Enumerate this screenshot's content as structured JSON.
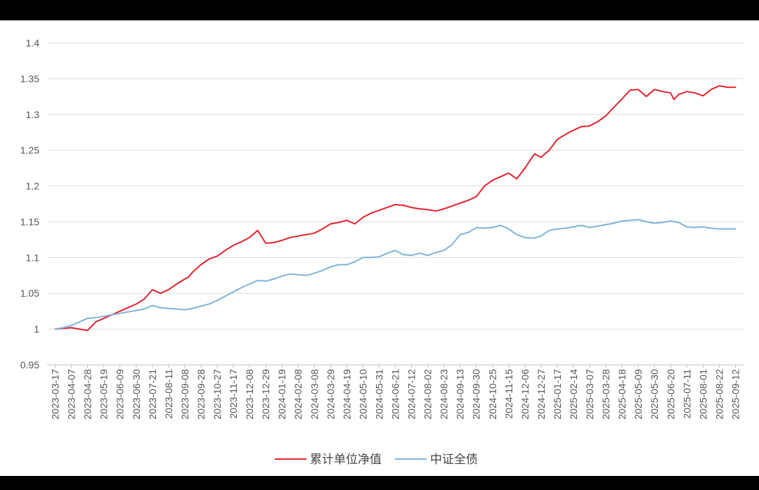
{
  "chart_data": {
    "type": "line",
    "title": "",
    "xlabel": "",
    "ylabel": "",
    "ylim": [
      0.95,
      1.4
    ],
    "yticks": [
      "0.95",
      "1",
      "1.05",
      "1.1",
      "1.15",
      "1.2",
      "1.25",
      "1.3",
      "1.35",
      "1.4"
    ],
    "grid": "horizontal",
    "legend_position": "bottom",
    "x_tick_labels": [
      "2023-03-17",
      "2023-04-07",
      "2023-04-28",
      "2023-05-19",
      "2023-06-09",
      "2023-06-30",
      "2023-07-21",
      "2023-08-11",
      "2023-09-08",
      "2023-09-28",
      "2023-10-27",
      "2023-11-17",
      "2023-12-08",
      "2023-12-29",
      "2024-01-19",
      "2024-02-08",
      "2024-03-08",
      "2024-03-29",
      "2024-04-19",
      "2024-05-10",
      "2024-05-31",
      "2024-06-21",
      "2024-07-12",
      "2024-08-02",
      "2024-08-23",
      "2024-09-13",
      "2024-09-30",
      "2024-10-25",
      "2024-11-15",
      "2024-12-06",
      "2024-12-27",
      "2025-01-17",
      "2025-02-14",
      "2025-03-07",
      "2025-03-28",
      "2025-04-18",
      "2025-05-09",
      "2025-05-30",
      "2025-06-20",
      "2025-07-11",
      "2025-08-01",
      "2025-08-22",
      "2025-09-12"
    ],
    "series": [
      {
        "name": "累计单位净值",
        "color": "#e0242f",
        "x": [
          0,
          0.5,
          1,
          1.5,
          2,
          2.5,
          3,
          3.5,
          4,
          4.5,
          5,
          5.5,
          6,
          6.5,
          7,
          7.5,
          8,
          8.2,
          8.5,
          9,
          9.5,
          10,
          10.5,
          11,
          11.5,
          12,
          12.5,
          13,
          13.5,
          14,
          14.5,
          15,
          15.2,
          15.5,
          16,
          16.5,
          17,
          17.5,
          18,
          18.5,
          19,
          19.5,
          20,
          20.5,
          21,
          21.5,
          22,
          22.5,
          23,
          23.5,
          24,
          24.5,
          25,
          25.5,
          26,
          26.5,
          27,
          27.5,
          28,
          28.5,
          29,
          29.3,
          29.6,
          30,
          30.5,
          31,
          31.5,
          32,
          32.5,
          33,
          33.5,
          34,
          34.5,
          35,
          35.5,
          36,
          36.5,
          37,
          37.5,
          38,
          38.2,
          38.5,
          39,
          39.5,
          40,
          40.5,
          41,
          41.5,
          42
        ],
        "values": [
          1.0,
          1.001,
          1.002,
          1.0,
          0.998,
          1.01,
          1.015,
          1.02,
          1.025,
          1.03,
          1.035,
          1.042,
          1.055,
          1.05,
          1.055,
          1.063,
          1.07,
          1.072,
          1.08,
          1.09,
          1.098,
          1.102,
          1.11,
          1.117,
          1.122,
          1.128,
          1.138,
          1.12,
          1.121,
          1.124,
          1.128,
          1.13,
          1.131,
          1.132,
          1.134,
          1.14,
          1.147,
          1.149,
          1.152,
          1.147,
          1.156,
          1.162,
          1.166,
          1.17,
          1.174,
          1.173,
          1.17,
          1.168,
          1.167,
          1.165,
          1.168,
          1.172,
          1.176,
          1.18,
          1.185,
          1.2,
          1.208,
          1.213,
          1.218,
          1.21,
          1.225,
          1.235,
          1.245,
          1.24,
          1.25,
          1.265,
          1.272,
          1.278,
          1.283,
          1.284,
          1.29,
          1.298,
          1.31,
          1.322,
          1.334,
          1.335,
          1.325,
          1.335,
          1.332,
          1.33,
          1.321,
          1.328,
          1.332,
          1.33,
          1.326,
          1.335,
          1.34,
          1.338,
          1.338
        ]
      },
      {
        "name": "中证全债",
        "color": "#7eb4d8",
        "x": [
          0,
          0.5,
          1,
          1.5,
          2,
          2.5,
          3,
          3.5,
          4,
          4.5,
          5,
          5.5,
          6,
          6.5,
          7,
          7.5,
          8,
          8.5,
          9,
          9.5,
          10,
          10.5,
          11,
          11.5,
          12,
          12.5,
          13,
          13.5,
          14,
          14.5,
          15,
          15.5,
          16,
          16.5,
          17,
          17.5,
          18,
          18.5,
          19,
          19.5,
          20,
          20.5,
          21,
          21.5,
          22,
          22.5,
          23,
          23.5,
          24,
          24.5,
          25,
          25.5,
          26,
          26.5,
          27,
          27.5,
          28,
          28.5,
          29,
          29.5,
          30,
          30.5,
          31,
          31.5,
          32,
          32.5,
          33,
          33.5,
          34,
          34.5,
          35,
          35.5,
          36,
          36.5,
          37,
          37.5,
          38,
          38.5,
          39,
          39.5,
          40,
          40.5,
          41,
          41.5,
          42
        ],
        "values": [
          1.0,
          1.002,
          1.005,
          1.01,
          1.015,
          1.016,
          1.018,
          1.02,
          1.022,
          1.024,
          1.026,
          1.028,
          1.033,
          1.03,
          1.029,
          1.028,
          1.027,
          1.029,
          1.032,
          1.035,
          1.04,
          1.046,
          1.052,
          1.058,
          1.063,
          1.068,
          1.067,
          1.07,
          1.074,
          1.077,
          1.076,
          1.075,
          1.078,
          1.082,
          1.087,
          1.09,
          1.09,
          1.094,
          1.1,
          1.1,
          1.101,
          1.106,
          1.11,
          1.104,
          1.103,
          1.106,
          1.103,
          1.107,
          1.11,
          1.118,
          1.132,
          1.135,
          1.142,
          1.141,
          1.142,
          1.145,
          1.14,
          1.132,
          1.128,
          1.127,
          1.13,
          1.138,
          1.14,
          1.141,
          1.143,
          1.145,
          1.142,
          1.144,
          1.146,
          1.148,
          1.151,
          1.152,
          1.153,
          1.15,
          1.148,
          1.149,
          1.151,
          1.149,
          1.143,
          1.142,
          1.143,
          1.141,
          1.14,
          1.14,
          1.14
        ]
      }
    ]
  }
}
